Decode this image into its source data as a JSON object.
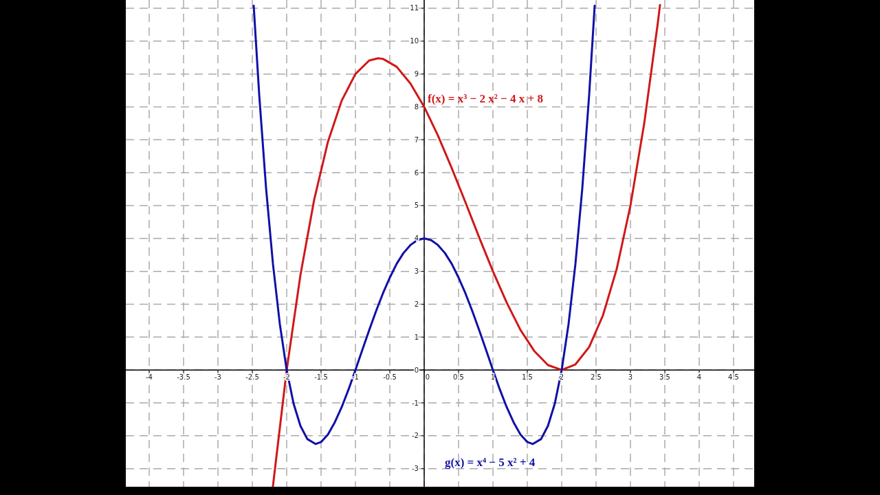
{
  "chart_data": {
    "type": "line",
    "xlim": [
      -4.34,
      4.8
    ],
    "ylim": [
      -3.55,
      11.25
    ],
    "xticks": [
      -4,
      -3.5,
      -3,
      -2.5,
      -2,
      -1.5,
      -1,
      -0.5,
      0,
      0.5,
      1,
      1.5,
      2,
      2.5,
      3,
      3.5,
      4,
      4.5
    ],
    "yticks": [
      -3,
      -2,
      -1,
      0,
      1,
      2,
      3,
      4,
      5,
      6,
      7,
      8,
      9,
      10,
      11
    ],
    "grid": true,
    "marker": "none",
    "line_style": "solid",
    "series": [
      {
        "name": "f(x) = x³ − 2 x² − 4 x + 8",
        "color": "#d01818",
        "x": [
          -2.2,
          -2,
          -1.8,
          -1.6,
          -1.4,
          -1.2,
          -1,
          -0.8,
          -0.67,
          -0.6,
          -0.4,
          -0.2,
          0,
          0.2,
          0.4,
          0.6,
          0.8,
          1,
          1.2,
          1.4,
          1.6,
          1.8,
          2,
          2.2,
          2.4,
          2.6,
          2.8,
          3,
          3.2,
          3.4,
          3.43
        ],
        "values": [
          -3.53,
          0,
          2.89,
          5.18,
          6.94,
          8.19,
          9,
          9.41,
          9.48,
          9.46,
          9.22,
          8.71,
          8,
          7.13,
          6.14,
          5.1,
          4.03,
          3,
          2.05,
          1.22,
          0.58,
          0.15,
          0,
          0.17,
          0.7,
          1.66,
          3.07,
          5,
          7.49,
          10.58,
          11.1
        ]
      },
      {
        "name": "g(x) = x⁴ − 5 x² + 4",
        "color": "#1010a8",
        "x": [
          -2.48,
          -2.4,
          -2.3,
          -2.2,
          -2.1,
          -2,
          -1.9,
          -1.8,
          -1.7,
          -1.58,
          -1.5,
          -1.4,
          -1.3,
          -1.2,
          -1.1,
          -1,
          -0.9,
          -0.8,
          -0.7,
          -0.6,
          -0.5,
          -0.4,
          -0.3,
          -0.2,
          -0.1,
          0,
          0.1,
          0.2,
          0.3,
          0.4,
          0.5,
          0.6,
          0.7,
          0.8,
          0.9,
          1,
          1.1,
          1.2,
          1.3,
          1.4,
          1.5,
          1.58,
          1.7,
          1.8,
          1.9,
          2,
          2.1,
          2.2,
          2.3,
          2.4,
          2.48
        ],
        "values": [
          11.08,
          8.38,
          5.53,
          3.23,
          1.4,
          0,
          -1.02,
          -1.7,
          -2.1,
          -2.25,
          -2.19,
          -1.96,
          -1.59,
          -1.13,
          -0.59,
          0,
          0.61,
          1.21,
          1.79,
          2.33,
          2.81,
          3.23,
          3.56,
          3.8,
          3.95,
          4,
          3.95,
          3.8,
          3.56,
          3.23,
          2.81,
          2.33,
          1.79,
          1.21,
          0.61,
          0,
          -0.59,
          -1.13,
          -1.59,
          -1.96,
          -2.19,
          -2.25,
          -2.1,
          -1.7,
          -1.02,
          0,
          1.4,
          3.23,
          5.53,
          8.38,
          11.08
        ]
      }
    ]
  }
}
